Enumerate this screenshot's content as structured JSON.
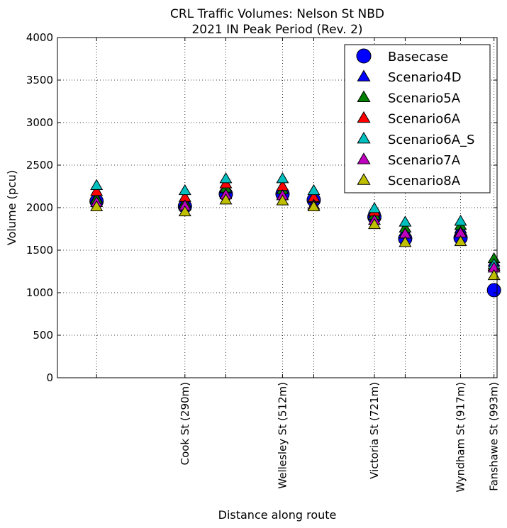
{
  "chart_data": {
    "type": "scatter",
    "title_lines": [
      "CRL Traffic Volumes: Nelson St NBD",
      "2021 IN Peak Period (Rev. 2)"
    ],
    "xlabel": "Distance along route",
    "ylabel": "Volume (pcu)",
    "xlim": [
      0,
      1000
    ],
    "ylim": [
      0,
      4000
    ],
    "yticks": [
      0,
      500,
      1000,
      1500,
      2000,
      2500,
      3000,
      3500,
      4000
    ],
    "grid": true,
    "legend_position": "top-right",
    "x": [
      89,
      290,
      383,
      512,
      583,
      721,
      791,
      917,
      993
    ],
    "tick_labels": [
      {
        "x": 290,
        "label": "Cook St (290m)"
      },
      {
        "x": 512,
        "label": "Wellesley St (512m)"
      },
      {
        "x": 721,
        "label": "Victoria St (721m)"
      },
      {
        "x": 917,
        "label": "Wyndham St (917m)"
      },
      {
        "x": 993,
        "label": "Fanshawe St (993m)"
      }
    ],
    "series": [
      {
        "name": "Basecase",
        "marker": "circle",
        "color": "#0000ff",
        "values": [
          2075,
          2015,
          2160,
          2160,
          2090,
          1890,
          1635,
          1645,
          1030
        ]
      },
      {
        "name": "Scenario4D",
        "marker": "triangle",
        "color": "#0000ff",
        "values": [
          2110,
          2060,
          2220,
          2210,
          2110,
          1920,
          1720,
          1750,
          1360
        ]
      },
      {
        "name": "Scenario5A",
        "marker": "triangle",
        "color": "#008000",
        "values": [
          2100,
          2050,
          2230,
          2210,
          2110,
          1910,
          1760,
          1790,
          1400
        ]
      },
      {
        "name": "Scenario6A",
        "marker": "triangle",
        "color": "#ff0000",
        "values": [
          2190,
          2120,
          2280,
          2250,
          2120,
          1950,
          1690,
          1710,
          1310
        ]
      },
      {
        "name": "Scenario6A_S",
        "marker": "triangle",
        "color": "#00bfbf",
        "values": [
          2260,
          2200,
          2340,
          2340,
          2200,
          1990,
          1830,
          1840,
          1330
        ]
      },
      {
        "name": "Scenario7A",
        "marker": "triangle",
        "color": "#bf00bf",
        "values": [
          2060,
          2020,
          2150,
          2140,
          2030,
          1850,
          1690,
          1700,
          1290
        ]
      },
      {
        "name": "Scenario8A",
        "marker": "triangle",
        "color": "#bfbf00",
        "values": [
          2010,
          1950,
          2090,
          2080,
          2010,
          1800,
          1590,
          1600,
          1200
        ]
      }
    ]
  }
}
